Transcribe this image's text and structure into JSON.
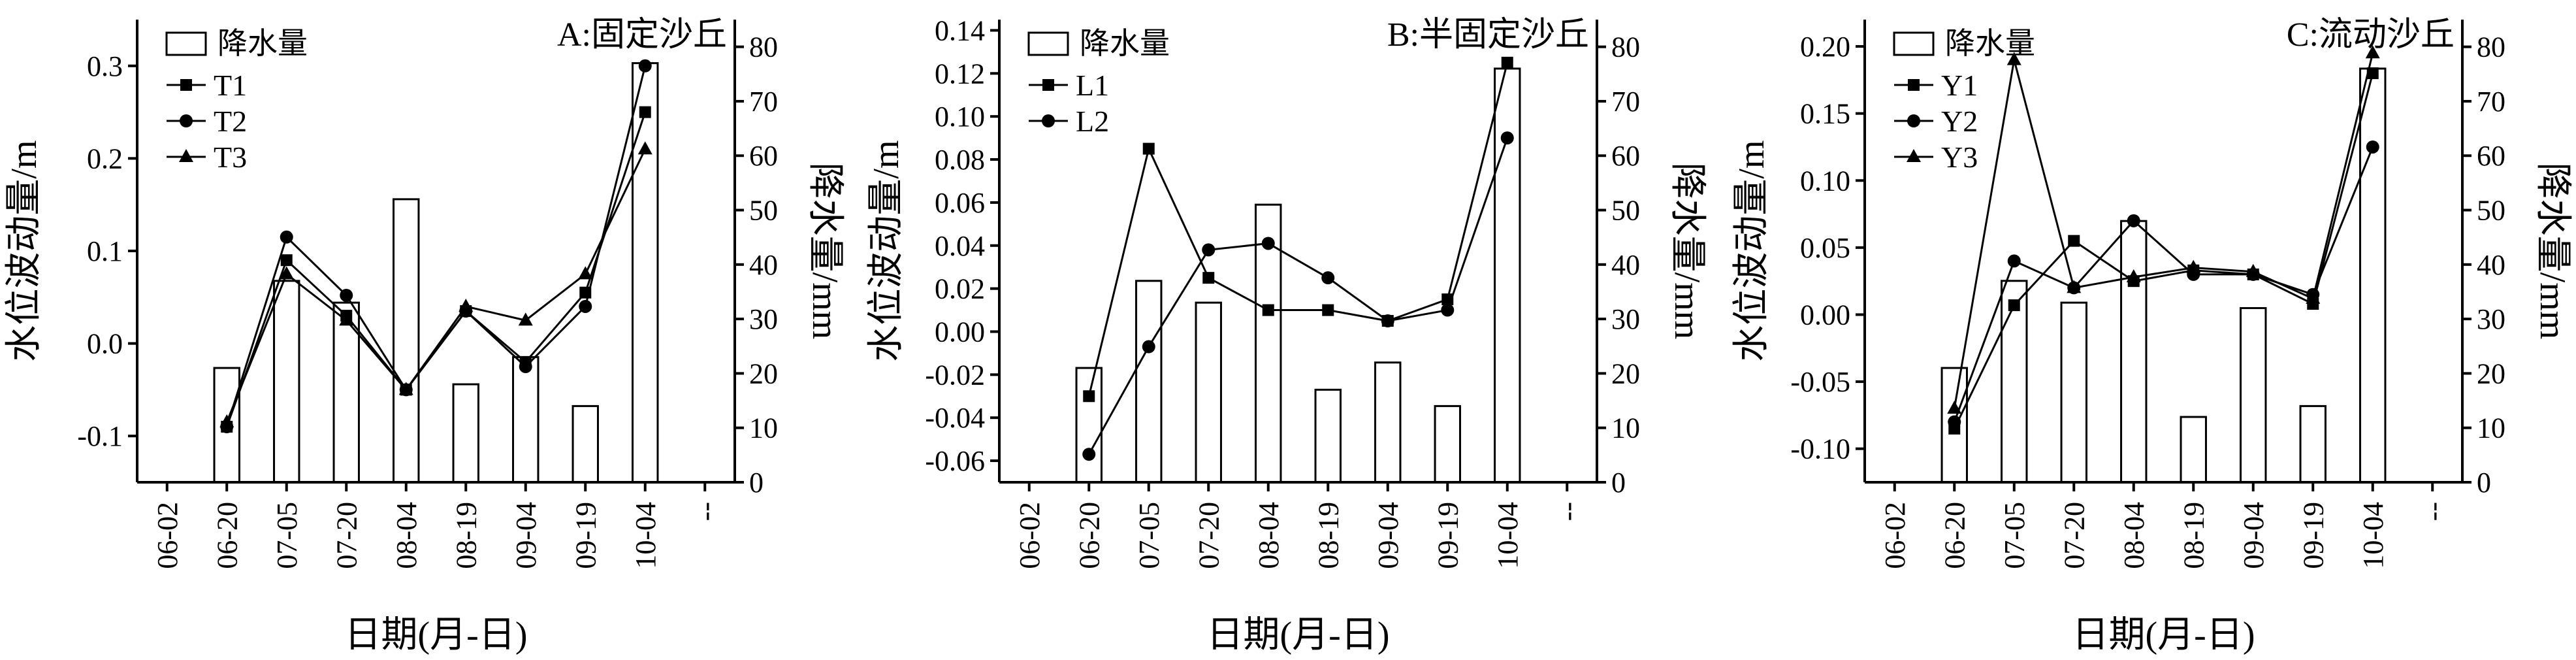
{
  "chart_data": [
    {
      "type": "bar+line",
      "title": "A:固定沙丘",
      "xlabel": "日期(月-日)",
      "ylabel": "水位波动量/m",
      "y2label": "降水量/mm",
      "categories": [
        "06-02",
        "06-20",
        "07-05",
        "07-20",
        "08-04",
        "08-19",
        "09-04",
        "09-19",
        "10-04",
        "--"
      ],
      "ylim": [
        -0.15,
        0.35
      ],
      "yticks": [
        -0.1,
        0.0,
        0.1,
        0.2,
        0.3
      ],
      "yticklabels": [
        "-0.1",
        "0.0",
        "0.1",
        "0.2",
        "0.3"
      ],
      "y2lim": [
        0,
        85
      ],
      "y2ticks": [
        0,
        10,
        20,
        30,
        40,
        50,
        60,
        70,
        80
      ],
      "y2ticklabels": [
        "0",
        "10",
        "20",
        "30",
        "40",
        "50",
        "60",
        "70",
        "80"
      ],
      "bar_series": {
        "name": "降水量",
        "x": [
          "06-20",
          "07-05",
          "07-20",
          "08-04",
          "08-19",
          "09-04",
          "09-19",
          "10-04"
        ],
        "values": [
          21,
          37,
          33,
          52,
          18,
          23,
          14,
          77
        ]
      },
      "series": [
        {
          "name": "T1",
          "marker": "square",
          "x": [
            "06-20",
            "07-05",
            "07-20",
            "08-04",
            "08-19",
            "09-04",
            "09-19",
            "10-04"
          ],
          "values": [
            -0.09,
            0.09,
            0.03,
            -0.05,
            0.035,
            -0.02,
            0.055,
            0.25
          ]
        },
        {
          "name": "T2",
          "marker": "circle",
          "x": [
            "06-20",
            "07-05",
            "07-20",
            "08-04",
            "08-19",
            "09-04",
            "09-19",
            "10-04"
          ],
          "values": [
            -0.09,
            0.115,
            0.052,
            -0.05,
            0.035,
            -0.025,
            0.04,
            0.3
          ]
        },
        {
          "name": "T3",
          "marker": "triangle",
          "x": [
            "06-20",
            "07-05",
            "07-20",
            "08-04",
            "08-19",
            "09-04",
            "09-19",
            "10-04"
          ],
          "values": [
            -0.085,
            0.075,
            0.025,
            -0.05,
            0.04,
            0.025,
            0.075,
            0.21
          ]
        }
      ]
    },
    {
      "type": "bar+line",
      "title": "B:半固定沙丘",
      "xlabel": "日期(月-日)",
      "ylabel": "水位波动量/m",
      "y2label": "降水量/mm",
      "categories": [
        "06-02",
        "06-20",
        "07-05",
        "07-20",
        "08-04",
        "08-19",
        "09-04",
        "09-19",
        "10-04",
        "--"
      ],
      "ylim": [
        -0.07,
        0.145
      ],
      "yticks": [
        -0.06,
        -0.04,
        -0.02,
        0.0,
        0.02,
        0.04,
        0.06,
        0.08,
        0.1,
        0.12,
        0.14
      ],
      "yticklabels": [
        "-0.06",
        "-0.04",
        "-0.02",
        "0.00",
        "0.02",
        "0.04",
        "0.06",
        "0.08",
        "0.10",
        "0.12",
        "0.14"
      ],
      "y2lim": [
        0,
        85
      ],
      "y2ticks": [
        0,
        10,
        20,
        30,
        40,
        50,
        60,
        70,
        80
      ],
      "y2ticklabels": [
        "0",
        "10",
        "20",
        "30",
        "40",
        "50",
        "60",
        "70",
        "80"
      ],
      "bar_series": {
        "name": "降水量",
        "x": [
          "06-20",
          "07-05",
          "07-20",
          "08-04",
          "08-19",
          "09-04",
          "09-19",
          "10-04"
        ],
        "values": [
          21,
          37,
          33,
          51,
          17,
          22,
          14,
          76
        ]
      },
      "series": [
        {
          "name": "L1",
          "marker": "square",
          "x": [
            "06-20",
            "07-05",
            "07-20",
            "08-04",
            "08-19",
            "09-04",
            "09-19",
            "10-04"
          ],
          "values": [
            -0.03,
            0.085,
            0.025,
            0.01,
            0.01,
            0.005,
            0.015,
            0.125
          ]
        },
        {
          "name": "L2",
          "marker": "circle",
          "x": [
            "06-20",
            "07-05",
            "07-20",
            "08-04",
            "08-19",
            "09-04",
            "09-19",
            "10-04"
          ],
          "values": [
            -0.057,
            -0.007,
            0.038,
            0.041,
            0.025,
            0.005,
            0.01,
            0.09
          ]
        }
      ]
    },
    {
      "type": "bar+line",
      "title": "C:流动沙丘",
      "xlabel": "日期(月-日)",
      "ylabel": "水位波动量/m",
      "y2label": "降水量/mm",
      "categories": [
        "06-02",
        "06-20",
        "07-05",
        "07-20",
        "08-04",
        "08-19",
        "09-04",
        "09-19",
        "10-04",
        "--"
      ],
      "ylim": [
        -0.125,
        0.22
      ],
      "yticks": [
        -0.1,
        -0.05,
        0.0,
        0.05,
        0.1,
        0.15,
        0.2
      ],
      "yticklabels": [
        "-0.10",
        "-0.05",
        "0.00",
        "0.05",
        "0.10",
        "0.15",
        "0.20"
      ],
      "y2lim": [
        0,
        85
      ],
      "y2ticks": [
        0,
        10,
        20,
        30,
        40,
        50,
        60,
        70,
        80
      ],
      "y2ticklabels": [
        "0",
        "10",
        "20",
        "30",
        "40",
        "50",
        "60",
        "70",
        "80"
      ],
      "bar_series": {
        "name": "降水量",
        "x": [
          "06-20",
          "07-05",
          "07-20",
          "08-04",
          "08-19",
          "09-04",
          "09-19",
          "10-04"
        ],
        "values": [
          21,
          37,
          33,
          48,
          12,
          32,
          14,
          76
        ]
      },
      "series": [
        {
          "name": "Y1",
          "marker": "square",
          "x": [
            "06-20",
            "07-05",
            "07-20",
            "08-04",
            "08-19",
            "09-04",
            "09-19",
            "10-04"
          ],
          "values": [
            -0.085,
            0.007,
            0.055,
            0.025,
            0.033,
            0.03,
            0.008,
            0.18
          ]
        },
        {
          "name": "Y2",
          "marker": "circle",
          "x": [
            "06-20",
            "07-05",
            "07-20",
            "08-04",
            "08-19",
            "09-04",
            "09-19",
            "10-04"
          ],
          "values": [
            -0.08,
            0.04,
            0.02,
            0.07,
            0.03,
            0.03,
            0.015,
            0.125
          ]
        },
        {
          "name": "Y3",
          "marker": "triangle",
          "x": [
            "06-20",
            "07-05",
            "07-20",
            "08-04",
            "08-19",
            "09-04",
            "09-19",
            "10-04"
          ],
          "values": [
            -0.07,
            0.19,
            0.02,
            0.028,
            0.035,
            0.032,
            0.012,
            0.195
          ]
        }
      ]
    }
  ]
}
